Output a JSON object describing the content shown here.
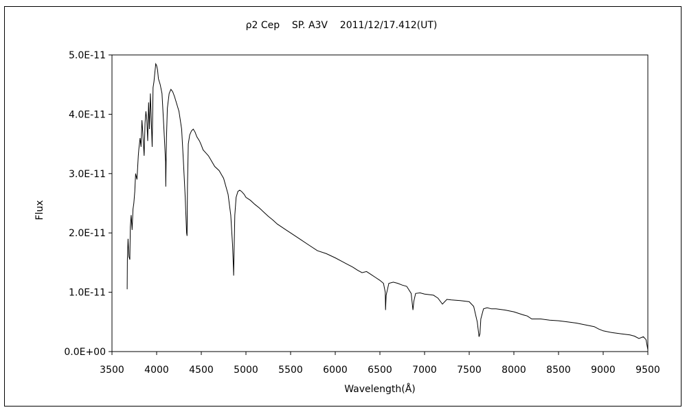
{
  "chart_data": {
    "type": "line",
    "title": "ρ2 Cep    SP. A3V    2011/12/17.412(UT)",
    "xlabel": "Wavelength(Å)",
    "ylabel": "Flux",
    "xlim": [
      3500,
      9500
    ],
    "ylim": [
      0,
      5e-11
    ],
    "x_ticks": [
      3500,
      4000,
      4500,
      5000,
      5500,
      6000,
      6500,
      7000,
      7500,
      8000,
      8500,
      9000,
      9500
    ],
    "x_tick_labels": [
      "3500",
      "4000",
      "4500",
      "5000",
      "5500",
      "6000",
      "6500",
      "7000",
      "7500",
      "8000",
      "8500",
      "9000",
      "9500"
    ],
    "y_ticks": [
      0,
      1e-11,
      2e-11,
      3e-11,
      4e-11,
      5e-11
    ],
    "y_tick_labels": [
      "0.0E+00",
      "1.0E-11",
      "2.0E-11",
      "3.0E-11",
      "4.0E-11",
      "5.0E-11"
    ],
    "grid": false,
    "legend": "none",
    "line_color": "#000000",
    "series": [
      {
        "x": [
          3670,
          3672,
          3680,
          3690,
          3700,
          3705,
          3715,
          3725,
          3735,
          3745,
          3755,
          3765,
          3780,
          3795,
          3800,
          3815,
          3825,
          3835,
          3845,
          3860,
          3870,
          3880,
          3890,
          3900,
          3910,
          3920,
          3930,
          3950,
          3960,
          3970,
          3980,
          3990,
          4000,
          4010,
          4020,
          4030,
          4040,
          4060,
          4080,
          4100,
          4102,
          4110,
          4120,
          4140,
          4160,
          4180,
          4200,
          4220,
          4250,
          4280,
          4300,
          4320,
          4335,
          4341,
          4345,
          4355,
          4370,
          4390,
          4410,
          4430,
          4450,
          4480,
          4500,
          4520,
          4550,
          4580,
          4600,
          4650,
          4700,
          4750,
          4800,
          4830,
          4850,
          4860,
          4862,
          4866,
          4875,
          4890,
          4910,
          4930,
          4950,
          4980,
          5000,
          5050,
          5100,
          5150,
          5200,
          5250,
          5300,
          5350,
          5400,
          5450,
          5500,
          5600,
          5700,
          5800,
          5900,
          6000,
          6100,
          6200,
          6250,
          6300,
          6350,
          6400,
          6450,
          6500,
          6540,
          6560,
          6563,
          6570,
          6600,
          6650,
          6700,
          6750,
          6800,
          6850,
          6870,
          6880,
          6900,
          6950,
          7000,
          7100,
          7150,
          7200,
          7250,
          7300,
          7400,
          7500,
          7550,
          7590,
          7610,
          7620,
          7630,
          7660,
          7700,
          7750,
          7800,
          7900,
          8000,
          8100,
          8150,
          8200,
          8300,
          8400,
          8500,
          8600,
          8700,
          8800,
          8900,
          8950,
          9000,
          9100,
          9200,
          9300,
          9350,
          9400,
          9450,
          9480,
          9500
        ],
        "y": [
          1.05e-11,
          1.55e-11,
          1.9e-11,
          1.6e-11,
          1.55e-11,
          2.1e-11,
          2.3e-11,
          2.05e-11,
          2.4e-11,
          2.5e-11,
          2.7e-11,
          3e-11,
          2.9e-11,
          3.3e-11,
          3.4e-11,
          3.6e-11,
          3.45e-11,
          3.9e-11,
          3.7e-11,
          3.3e-11,
          3.85e-11,
          4.05e-11,
          3.9e-11,
          3.55e-11,
          4.2e-11,
          3.75e-11,
          4.35e-11,
          3.45e-11,
          4.45e-11,
          4.55e-11,
          4.7e-11,
          4.85e-11,
          4.82e-11,
          4.75e-11,
          4.6e-11,
          4.55e-11,
          4.5e-11,
          4.35e-11,
          3.8e-11,
          3.2e-11,
          2.78e-11,
          3.6e-11,
          4.1e-11,
          4.35e-11,
          4.42e-11,
          4.38e-11,
          4.3e-11,
          4.2e-11,
          4.05e-11,
          3.75e-11,
          3.2e-11,
          2.6e-11,
          2e-11,
          1.95e-11,
          2.8e-11,
          3.5e-11,
          3.65e-11,
          3.72e-11,
          3.75e-11,
          3.7e-11,
          3.62e-11,
          3.55e-11,
          3.48e-11,
          3.4e-11,
          3.35e-11,
          3.3e-11,
          3.25e-11,
          3.12e-11,
          3.05e-11,
          2.92e-11,
          2.65e-11,
          2.3e-11,
          1.8e-11,
          1.4e-11,
          1.28e-11,
          1.6e-11,
          2.3e-11,
          2.6e-11,
          2.7e-11,
          2.72e-11,
          2.7e-11,
          2.65e-11,
          2.6e-11,
          2.55e-11,
          2.48e-11,
          2.42e-11,
          2.35e-11,
          2.28e-11,
          2.22e-11,
          2.15e-11,
          2.1e-11,
          2.05e-11,
          2e-11,
          1.9e-11,
          1.8e-11,
          1.7e-11,
          1.65e-11,
          1.58e-11,
          1.5e-11,
          1.42e-11,
          1.37e-11,
          1.33e-11,
          1.35e-11,
          1.3e-11,
          1.25e-11,
          1.2e-11,
          1.15e-11,
          1e-11,
          7e-12,
          9.5e-12,
          1.15e-11,
          1.17e-11,
          1.15e-11,
          1.12e-11,
          1.1e-11,
          9.8e-12,
          7e-12,
          8.5e-12,
          9.8e-12,
          9.9e-12,
          9.7e-12,
          9.5e-12,
          9e-12,
          8e-12,
          8.8e-12,
          8.7e-12,
          8.6e-12,
          8.4e-12,
          7.6e-12,
          5e-12,
          2.5e-12,
          3e-12,
          5.5e-12,
          7.2e-12,
          7.4e-12,
          7.2e-12,
          7.2e-12,
          7e-12,
          6.7e-12,
          6.2e-12,
          6e-12,
          5.5e-12,
          5.5e-12,
          5.3e-12,
          5.2e-12,
          5e-12,
          4.8e-12,
          4.5e-12,
          4.2e-12,
          3.8e-12,
          3.5e-12,
          3.2e-12,
          3e-12,
          2.8e-12,
          2.6e-12,
          2.2e-12,
          2.5e-12,
          2e-12,
          3e-13
        ]
      }
    ]
  }
}
